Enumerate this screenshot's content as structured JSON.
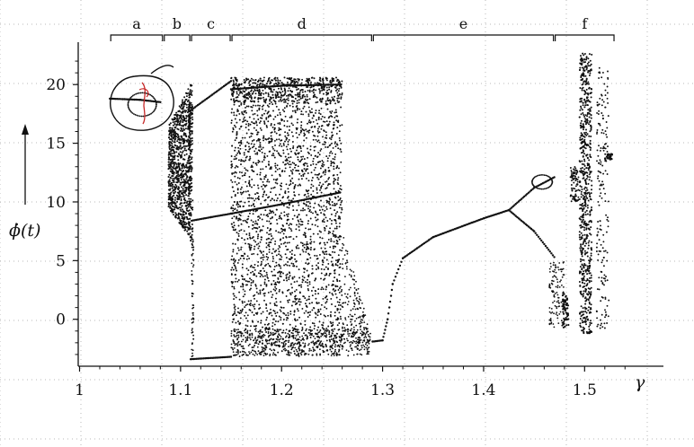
{
  "chart_data": {
    "type": "scatter",
    "title": "",
    "xlabel": "γ",
    "ylabel": "ϕ̇(t)",
    "xlim": [
      1.0,
      1.55
    ],
    "ylim": [
      -4,
      23
    ],
    "x_ticks": [
      "1",
      "1.1",
      "1.2",
      "1.3",
      "1.4",
      "1.5"
    ],
    "y_ticks": [
      "0",
      "5",
      "10",
      "15",
      "20"
    ],
    "grid": true,
    "regions": [
      {
        "label": "a",
        "from": 1.03,
        "to": 1.083
      },
      {
        "label": "b",
        "from": 1.083,
        "to": 1.11
      },
      {
        "label": "c",
        "from": 1.11,
        "to": 1.15
      },
      {
        "label": "d",
        "from": 1.15,
        "to": 1.29
      },
      {
        "label": "e",
        "from": 1.29,
        "to": 1.47
      },
      {
        "label": "f",
        "from": 1.47,
        "to": 1.53
      }
    ],
    "series": [
      {
        "values": [
          [
            1.03,
            18.8
          ],
          [
            1.06,
            18.7
          ],
          [
            1.08,
            18.5
          ]
        ]
      },
      {
        "values": [
          [
            1.111,
            8.4
          ],
          [
            1.13,
            8.7
          ],
          [
            1.15,
            9.0
          ]
        ]
      },
      {
        "values": [
          [
            1.11,
            -3.4
          ],
          [
            1.15,
            -3.2
          ]
        ]
      },
      {
        "values": [
          [
            1.11,
            17.8
          ],
          [
            1.15,
            20.3
          ]
        ]
      },
      {
        "values": [
          [
            1.15,
            9.0
          ],
          [
            1.2,
            9.8
          ],
          [
            1.258,
            10.8
          ]
        ]
      },
      {
        "values": [
          [
            1.15,
            19.6
          ],
          [
            1.2,
            19.9
          ],
          [
            1.258,
            20.0
          ]
        ]
      },
      {
        "values": [
          [
            1.29,
            -1.9
          ],
          [
            1.3,
            -1.8
          ],
          [
            1.305,
            0.0
          ],
          [
            1.31,
            3.0
          ],
          [
            1.32,
            5.2
          ],
          [
            1.35,
            7.0
          ],
          [
            1.4,
            8.6
          ],
          [
            1.425,
            9.3
          ]
        ]
      },
      {
        "values": [
          [
            1.425,
            9.3
          ],
          [
            1.45,
            11.2
          ],
          [
            1.47,
            12.1
          ]
        ]
      },
      {
        "values": [
          [
            1.425,
            9.3
          ],
          [
            1.45,
            7.5
          ],
          [
            1.47,
            5.3
          ]
        ]
      }
    ]
  }
}
